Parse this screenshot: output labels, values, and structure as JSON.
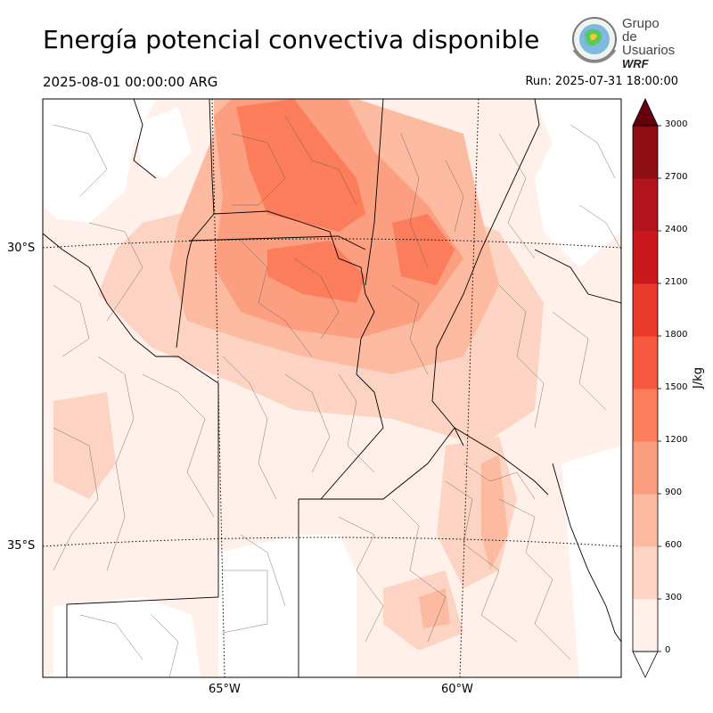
{
  "header": {
    "title": "Energía potencial convectiva disponible",
    "valid_time": "2025-08-01 00:00:00 ARG",
    "run_time": "Run: 2025-07-31 18:00:00"
  },
  "logo": {
    "line1": "Grupo de",
    "line2": "Usuarios",
    "line3": "WRF"
  },
  "map": {
    "lat_labels": [
      "30°S",
      "35°S"
    ],
    "lon_labels": [
      "65°W",
      "60°W"
    ]
  },
  "colorbar": {
    "label": "J/kg",
    "ticks": [
      "0",
      "300",
      "600",
      "900",
      "1200",
      "1500",
      "1800",
      "2100",
      "2400",
      "2700",
      "3000"
    ],
    "colors": [
      "#fff0ea",
      "#fdd4c3",
      "#fcbba1",
      "#fc9f81",
      "#fb7d5c",
      "#f6593d",
      "#e8392b",
      "#cb181d",
      "#b1141a",
      "#8d0d15",
      "#67000d"
    ],
    "extend": "both"
  }
}
